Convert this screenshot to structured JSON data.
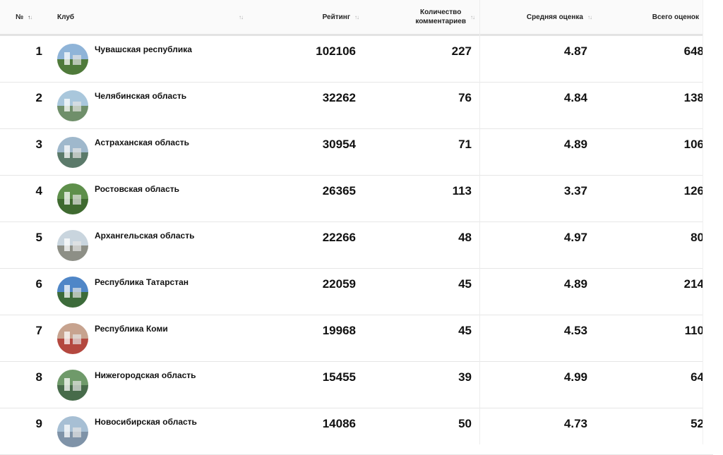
{
  "header": {
    "num": "№",
    "club": "Клуб",
    "rating": "Рейтинг",
    "comments_line1": "Количество",
    "comments_line2": "комментариев",
    "avg": "Средняя оценка",
    "total": "Всего оценок",
    "sort_glyph": "↑↓"
  },
  "rows": [
    {
      "num": "1",
      "name": "Чувашская республика",
      "rating": "102106",
      "comments": "227",
      "avg": "4.87",
      "total": "648",
      "sky": "#8fb4d8",
      "ground": "#4f7a3a"
    },
    {
      "num": "2",
      "name": "Челябинская область",
      "rating": "32262",
      "comments": "76",
      "avg": "4.84",
      "total": "138",
      "sky": "#a9c7dc",
      "ground": "#6f8f6a"
    },
    {
      "num": "3",
      "name": "Астраханская область",
      "rating": "30954",
      "comments": "71",
      "avg": "4.89",
      "total": "106",
      "sky": "#9fb8cc",
      "ground": "#5b7a6a"
    },
    {
      "num": "4",
      "name": "Ростовская область",
      "rating": "26365",
      "comments": "113",
      "avg": "3.37",
      "total": "126",
      "sky": "#5e8f4b",
      "ground": "#3f6a30"
    },
    {
      "num": "5",
      "name": "Архангельская область",
      "rating": "22266",
      "comments": "48",
      "avg": "4.97",
      "total": "80",
      "sky": "#c9d5de",
      "ground": "#8d8f86"
    },
    {
      "num": "6",
      "name": "Республика Татарстан",
      "rating": "22059",
      "comments": "45",
      "avg": "4.89",
      "total": "214",
      "sky": "#4f86c7",
      "ground": "#3c6b3a"
    },
    {
      "num": "7",
      "name": "Республика Коми",
      "rating": "19968",
      "comments": "45",
      "avg": "4.53",
      "total": "110",
      "sky": "#c7a38f",
      "ground": "#b4483f"
    },
    {
      "num": "8",
      "name": "Нижегородская область",
      "rating": "15455",
      "comments": "39",
      "avg": "4.99",
      "total": "64",
      "sky": "#6f9a6a",
      "ground": "#476b4a"
    },
    {
      "num": "9",
      "name": "Новосибирская область",
      "rating": "14086",
      "comments": "50",
      "avg": "4.73",
      "total": "52",
      "sky": "#a7bfd4",
      "ground": "#7f93a8"
    }
  ]
}
